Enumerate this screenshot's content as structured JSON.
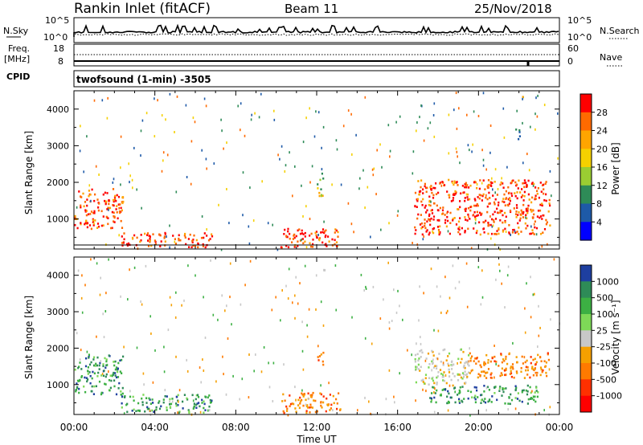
{
  "header": {
    "title": "Rankin Inlet (fitACF)",
    "beam": "Beam 11",
    "date": "25/Nov/2018"
  },
  "top_panels": {
    "nsky_label": "N.Sky",
    "nsearch_label": "N.Search",
    "left_ticks": [
      "10^5",
      "10^0"
    ],
    "right_ticks": [
      "10^5",
      "10^0"
    ],
    "freq_label": "Freq.",
    "freq_unit": "[MHz]",
    "freq_ticks": [
      "18",
      "8"
    ],
    "nave_label": "Nave",
    "nave_ticks": [
      "60",
      "0"
    ],
    "cpid_label": "CPID",
    "cpid_value": "twofsound (1-min) -3505"
  },
  "chart_data": [
    {
      "type": "heatmap",
      "title": "",
      "xlabel": "Time UT",
      "ylabel": "Slant Range [km]",
      "x_ticks": [
        "00:00",
        "04:00",
        "08:00",
        "12:00",
        "16:00",
        "20:00",
        "00:00"
      ],
      "x_range_hours": [
        0,
        24
      ],
      "y_ticks": [
        1000,
        2000,
        3000,
        4000
      ],
      "y_range_km": [
        180,
        4500
      ],
      "colorbar": {
        "label": "Power [dB]",
        "ticks": [
          "28",
          "24",
          "20",
          "16",
          "12",
          "8",
          "4"
        ],
        "colors": [
          "#ff0000",
          "#ff6a00",
          "#ffa500",
          "#f5d000",
          "#9acd32",
          "#2e8b57",
          "#1e5aa8",
          "#0000ff"
        ]
      },
      "echo_regions": [
        {
          "t0": 0.0,
          "t1": 2.4,
          "r0": 750,
          "r1": 1850,
          "level": "high"
        },
        {
          "t0": 2.3,
          "t1": 6.8,
          "r0": 250,
          "r1": 650,
          "level": "high"
        },
        {
          "t0": 10.2,
          "t1": 13.2,
          "r0": 250,
          "r1": 800,
          "level": "high"
        },
        {
          "t0": 12.0,
          "t1": 12.3,
          "r0": 1500,
          "r1": 2300,
          "level": "mid"
        },
        {
          "t0": 16.8,
          "t1": 23.5,
          "r0": 600,
          "r1": 2100,
          "level": "high"
        },
        {
          "t0": 21.8,
          "t1": 22.2,
          "r0": 3200,
          "r1": 3500,
          "level": "low"
        },
        {
          "t0": 22.0,
          "t1": 22.2,
          "r0": 4200,
          "r1": 4400,
          "level": "mid"
        }
      ]
    },
    {
      "type": "heatmap",
      "title": "",
      "xlabel": "Time UT",
      "ylabel": "Slant Range [km]",
      "x_ticks": [
        "00:00",
        "04:00",
        "08:00",
        "12:00",
        "16:00",
        "20:00",
        "00:00"
      ],
      "x_range_hours": [
        0,
        24
      ],
      "y_ticks": [
        1000,
        2000,
        3000,
        4000
      ],
      "y_range_km": [
        180,
        4500
      ],
      "colorbar": {
        "label": "Velocity [m s⁻¹]",
        "ticks": [
          "1000",
          "500",
          "100",
          "25",
          "-25",
          "-100",
          "-500",
          "-1000"
        ],
        "colors": [
          "#1e3fa0",
          "#2e8b57",
          "#3cb043",
          "#7ed957",
          "#c8c8c8",
          "#f5a000",
          "#ff7a00",
          "#ff3000",
          "#ff0000"
        ]
      },
      "echo_regions": [
        {
          "t0": 0.0,
          "t1": 2.4,
          "r0": 750,
          "r1": 1850,
          "level": "pos"
        },
        {
          "t0": 2.3,
          "t1": 6.8,
          "r0": 250,
          "r1": 750,
          "level": "pos"
        },
        {
          "t0": 10.2,
          "t1": 13.2,
          "r0": 250,
          "r1": 800,
          "level": "neg"
        },
        {
          "t0": 16.8,
          "t1": 19.5,
          "r0": 1000,
          "r1": 2000,
          "level": "zero"
        },
        {
          "t0": 19.5,
          "t1": 23.5,
          "r0": 1200,
          "r1": 1900,
          "level": "neg"
        },
        {
          "t0": 17.5,
          "t1": 23.0,
          "r0": 500,
          "r1": 1000,
          "level": "pos"
        },
        {
          "t0": 12.0,
          "t1": 12.3,
          "r0": 1500,
          "r1": 2000,
          "level": "neg"
        }
      ]
    }
  ]
}
